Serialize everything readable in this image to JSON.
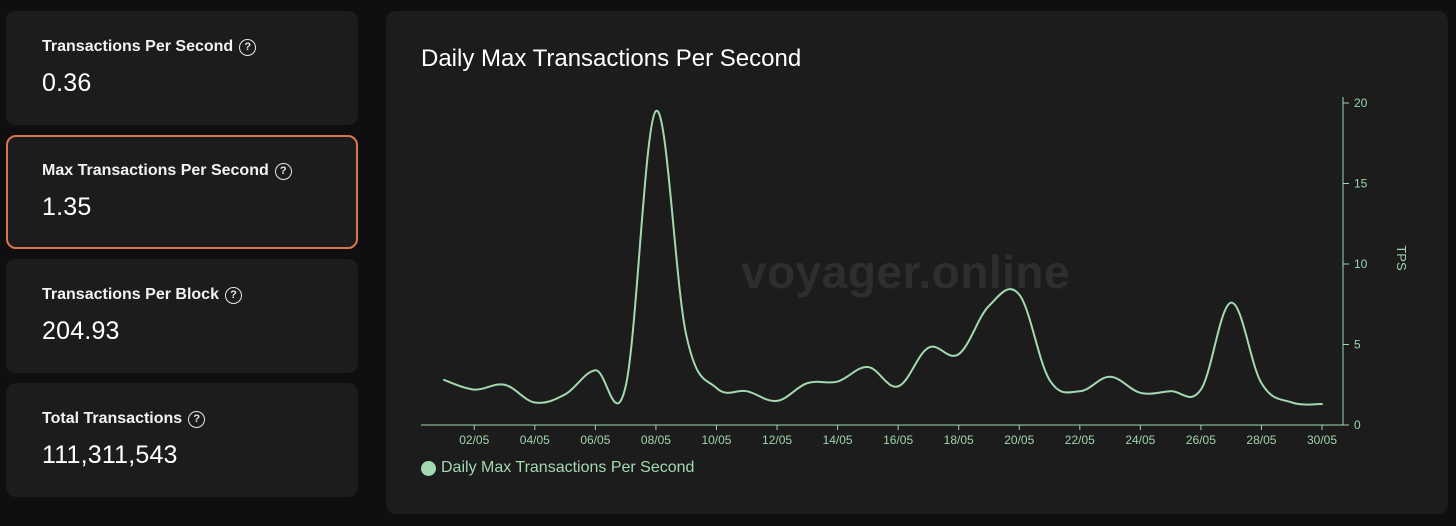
{
  "stats": [
    {
      "label": "Transactions Per Second",
      "value": "0.36",
      "active": false
    },
    {
      "label": "Max Transactions Per Second",
      "value": "1.35",
      "active": true
    },
    {
      "label": "Transactions Per Block",
      "value": "204.93",
      "active": false
    },
    {
      "label": "Total Transactions",
      "value": "111,311,543",
      "active": false
    }
  ],
  "help_glyph": "?",
  "watermark": "voyager.online",
  "colors": {
    "accent_border": "#d9764e",
    "series": "#a3d9b1",
    "axis": "#9fd4ac"
  },
  "chart_data": {
    "type": "line",
    "title": "Daily Max Transactions Per Second",
    "xlabel": "",
    "ylabel": "TPS",
    "ylim": [
      0,
      20
    ],
    "yticks": [
      0,
      5,
      10,
      15,
      20
    ],
    "y_axis_side": "right",
    "grid": false,
    "legend_position": "bottom-left",
    "xticks": [
      "02/05",
      "04/05",
      "06/05",
      "08/05",
      "10/05",
      "12/05",
      "14/05",
      "16/05",
      "18/05",
      "20/05",
      "22/05",
      "24/05",
      "26/05",
      "28/05",
      "30/05"
    ],
    "x": [
      "01/05",
      "02/05",
      "03/05",
      "04/05",
      "05/05",
      "06/05",
      "07/05",
      "08/05",
      "09/05",
      "10/05",
      "11/05",
      "12/05",
      "13/05",
      "14/05",
      "15/05",
      "16/05",
      "17/05",
      "18/05",
      "19/05",
      "20/05",
      "21/05",
      "22/05",
      "23/05",
      "24/05",
      "25/05",
      "26/05",
      "27/05",
      "28/05",
      "29/05",
      "30/05"
    ],
    "series": [
      {
        "name": "Daily Max Transactions Per Second",
        "values": [
          2.8,
          2.2,
          2.5,
          1.4,
          1.9,
          3.4,
          2.4,
          19.5,
          5.6,
          2.3,
          2.1,
          1.5,
          2.6,
          2.7,
          3.6,
          2.4,
          4.8,
          4.4,
          7.4,
          8.1,
          2.8,
          2.1,
          3.0,
          2.0,
          2.1,
          2.2,
          7.6,
          2.6,
          1.4,
          1.3
        ]
      }
    ]
  }
}
